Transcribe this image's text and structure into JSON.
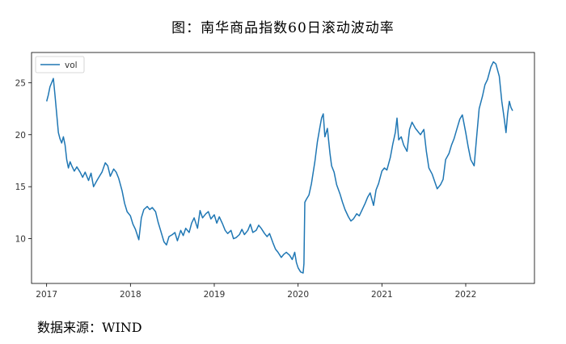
{
  "header": {
    "title": "图：南华商品指数60日滚动波动率"
  },
  "footer": {
    "source": "数据来源：WIND"
  },
  "colors": {
    "line": "#1f77b4",
    "axis": "#000000",
    "text": "#333333"
  },
  "chart_data": {
    "type": "line",
    "title": "图：南华商品指数60日滚动波动率",
    "xlabel": "",
    "ylabel": "",
    "xlim": [
      2016.82,
      2022.82
    ],
    "ylim": [
      5.7,
      27.9
    ],
    "xticks": [
      2017,
      2018,
      2019,
      2020,
      2021,
      2022
    ],
    "xtick_labels": [
      "2017",
      "2018",
      "2019",
      "2020",
      "2021",
      "2022"
    ],
    "yticks": [
      10,
      15,
      20,
      25
    ],
    "ytick_labels": [
      "10",
      "15",
      "20",
      "25"
    ],
    "grid": false,
    "legend": {
      "position": "top-left",
      "entries": [
        "vol"
      ]
    },
    "series": [
      {
        "name": "vol",
        "x": [
          2017.0,
          2017.02,
          2017.04,
          2017.06,
          2017.08,
          2017.1,
          2017.12,
          2017.14,
          2017.16,
          2017.18,
          2017.2,
          2017.22,
          2017.24,
          2017.26,
          2017.28,
          2017.3,
          2017.33,
          2017.36,
          2017.4,
          2017.43,
          2017.46,
          2017.5,
          2017.53,
          2017.56,
          2017.6,
          2017.63,
          2017.66,
          2017.7,
          2017.73,
          2017.76,
          2017.8,
          2017.83,
          2017.86,
          2017.9,
          2017.93,
          2017.96,
          2018.0,
          2018.03,
          2018.06,
          2018.1,
          2018.13,
          2018.16,
          2018.2,
          2018.23,
          2018.26,
          2018.3,
          2018.33,
          2018.36,
          2018.4,
          2018.43,
          2018.46,
          2018.5,
          2018.53,
          2018.56,
          2018.6,
          2018.63,
          2018.66,
          2018.7,
          2018.73,
          2018.76,
          2018.8,
          2018.83,
          2018.86,
          2018.9,
          2018.93,
          2018.96,
          2019.0,
          2019.03,
          2019.06,
          2019.1,
          2019.13,
          2019.16,
          2019.2,
          2019.23,
          2019.26,
          2019.3,
          2019.33,
          2019.36,
          2019.4,
          2019.43,
          2019.46,
          2019.5,
          2019.53,
          2019.56,
          2019.6,
          2019.63,
          2019.66,
          2019.7,
          2019.73,
          2019.76,
          2019.8,
          2019.83,
          2019.86,
          2019.9,
          2019.93,
          2019.96,
          2019.98,
          2020.0,
          2020.03,
          2020.06,
          2020.07,
          2020.08,
          2020.1,
          2020.13,
          2020.16,
          2020.2,
          2020.23,
          2020.26,
          2020.28,
          2020.3,
          2020.32,
          2020.35,
          2020.38,
          2020.4,
          2020.43,
          2020.46,
          2020.5,
          2020.53,
          2020.56,
          2020.6,
          2020.63,
          2020.66,
          2020.7,
          2020.73,
          2020.76,
          2020.8,
          2020.83,
          2020.86,
          2020.9,
          2020.93,
          2020.96,
          2021.0,
          2021.03,
          2021.06,
          2021.1,
          2021.13,
          2021.16,
          2021.18,
          2021.2,
          2021.23,
          2021.26,
          2021.3,
          2021.33,
          2021.36,
          2021.4,
          2021.43,
          2021.46,
          2021.5,
          2021.53,
          2021.56,
          2021.6,
          2021.63,
          2021.66,
          2021.7,
          2021.73,
          2021.76,
          2021.8,
          2021.83,
          2021.86,
          2021.9,
          2021.93,
          2021.96,
          2022.0,
          2022.03,
          2022.06,
          2022.1,
          2022.13,
          2022.16,
          2022.2,
          2022.23,
          2022.26,
          2022.3,
          2022.33,
          2022.36,
          2022.4,
          2022.43,
          2022.46,
          2022.48,
          2022.5,
          2022.52,
          2022.54,
          2022.56
        ],
        "y": [
          23.2,
          23.8,
          24.6,
          25.0,
          25.4,
          23.8,
          22.0,
          20.2,
          19.6,
          19.2,
          19.8,
          19.0,
          17.6,
          16.8,
          17.4,
          17.0,
          16.5,
          16.9,
          16.4,
          15.9,
          16.4,
          15.6,
          16.3,
          15.0,
          15.6,
          16.0,
          16.4,
          17.3,
          17.0,
          16.0,
          16.7,
          16.4,
          15.8,
          14.6,
          13.4,
          12.6,
          12.2,
          11.4,
          10.9,
          9.9,
          12.0,
          12.8,
          13.1,
          12.8,
          13.0,
          12.6,
          11.6,
          10.8,
          9.7,
          9.4,
          10.2,
          10.4,
          10.6,
          9.8,
          10.8,
          10.3,
          11.0,
          10.6,
          11.5,
          12.0,
          11.0,
          12.7,
          12.0,
          12.4,
          12.6,
          11.9,
          12.3,
          11.5,
          12.1,
          11.4,
          10.8,
          10.5,
          10.8,
          10.0,
          10.1,
          10.4,
          10.9,
          10.4,
          10.8,
          11.4,
          10.6,
          10.8,
          11.3,
          11.0,
          10.5,
          10.2,
          10.5,
          9.6,
          9.0,
          8.7,
          8.2,
          8.5,
          8.7,
          8.4,
          8.0,
          8.7,
          7.7,
          7.2,
          6.8,
          6.7,
          7.6,
          13.5,
          13.8,
          14.2,
          15.3,
          17.4,
          19.3,
          20.7,
          21.6,
          22.0,
          19.8,
          20.6,
          18.2,
          17.0,
          16.4,
          15.2,
          14.3,
          13.5,
          12.8,
          12.1,
          11.7,
          11.9,
          12.4,
          12.2,
          12.7,
          13.4,
          14.0,
          14.4,
          13.2,
          14.7,
          15.3,
          16.5,
          16.8,
          16.6,
          17.8,
          19.1,
          20.2,
          21.6,
          19.5,
          19.8,
          19.0,
          18.4,
          20.5,
          21.2,
          20.6,
          20.3,
          20.0,
          20.5,
          18.4,
          16.8,
          16.2,
          15.5,
          14.8,
          15.2,
          15.7,
          17.6,
          18.2,
          19.0,
          19.6,
          20.7,
          21.5,
          21.9,
          20.2,
          18.8,
          17.6,
          17.0,
          19.8,
          22.5,
          23.7,
          24.8,
          25.3,
          26.5,
          27.0,
          26.8,
          25.6,
          23.2,
          21.5,
          20.2,
          22.0,
          23.2,
          22.6,
          22.3
        ]
      }
    ]
  }
}
